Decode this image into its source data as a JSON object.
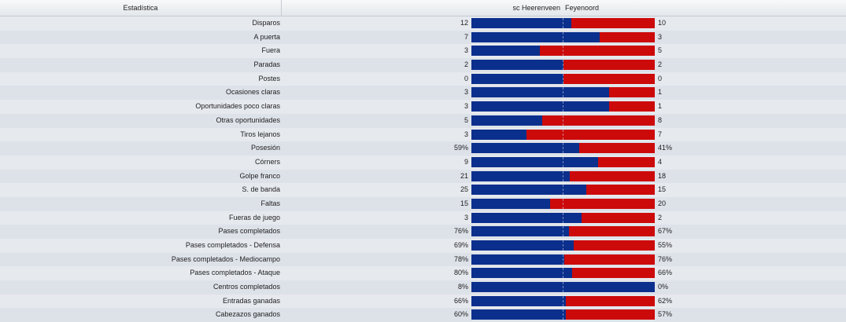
{
  "header": {
    "stat_col": "Estadística",
    "home_team": "sc Heerenveen",
    "away_team": "Feyenoord"
  },
  "colors": {
    "home": "#0b2f8c",
    "away": "#cc0a0a"
  },
  "stats": [
    {
      "label": "Disparos",
      "home": "12",
      "away": "10",
      "home_share": 0.545
    },
    {
      "label": "A puerta",
      "home": "7",
      "away": "3",
      "home_share": 0.7
    },
    {
      "label": "Fuera",
      "home": "3",
      "away": "5",
      "home_share": 0.375
    },
    {
      "label": "Paradas",
      "home": "2",
      "away": "2",
      "home_share": 0.5
    },
    {
      "label": "Postes",
      "home": "0",
      "away": "0",
      "home_share": 0.5
    },
    {
      "label": "Ocasiones claras",
      "home": "3",
      "away": "1",
      "home_share": 0.75
    },
    {
      "label": "Oportunidades poco claras",
      "home": "3",
      "away": "1",
      "home_share": 0.75
    },
    {
      "label": "Otras oportunidades",
      "home": "5",
      "away": "8",
      "home_share": 0.385
    },
    {
      "label": "Tiros lejanos",
      "home": "3",
      "away": "7",
      "home_share": 0.3
    },
    {
      "label": "Posesión",
      "home": "59%",
      "away": "41%",
      "home_share": 0.59
    },
    {
      "label": "Córners",
      "home": "9",
      "away": "4",
      "home_share": 0.692
    },
    {
      "label": "Golpe franco",
      "home": "21",
      "away": "18",
      "home_share": 0.538
    },
    {
      "label": "S. de banda",
      "home": "25",
      "away": "15",
      "home_share": 0.625
    },
    {
      "label": "Faltas",
      "home": "15",
      "away": "20",
      "home_share": 0.429
    },
    {
      "label": "Fueras de juego",
      "home": "3",
      "away": "2",
      "home_share": 0.6
    },
    {
      "label": "Pases completados",
      "home": "76%",
      "away": "67%",
      "home_share": 0.531
    },
    {
      "label": "Pases completados - Defensa",
      "home": "69%",
      "away": "55%",
      "home_share": 0.556
    },
    {
      "label": "Pases completados - Mediocampo",
      "home": "78%",
      "away": "76%",
      "home_share": 0.506
    },
    {
      "label": "Pases completados - Ataque",
      "home": "80%",
      "away": "66%",
      "home_share": 0.548
    },
    {
      "label": "Centros completados",
      "home": "8%",
      "away": "0%",
      "home_share": 1.0
    },
    {
      "label": "Entradas ganadas",
      "home": "66%",
      "away": "62%",
      "home_share": 0.516
    },
    {
      "label": "Cabezazos ganados",
      "home": "60%",
      "away": "57%",
      "home_share": 0.513
    }
  ]
}
